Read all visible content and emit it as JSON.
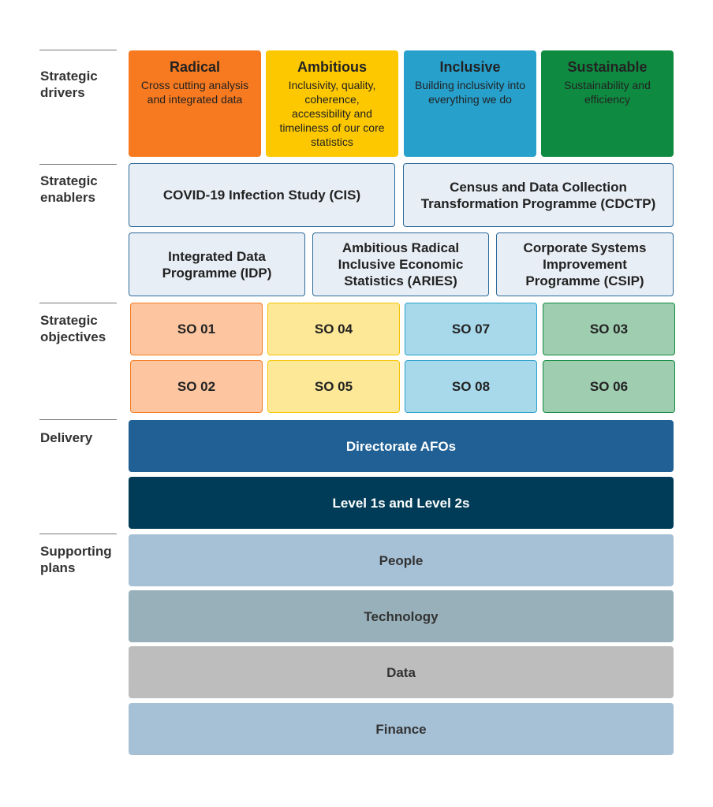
{
  "sections": [
    "Strategic drivers",
    "Strategic enablers",
    "Strategic objectives",
    "Delivery",
    "Supporting plans"
  ],
  "drivers": [
    {
      "title": "Radical",
      "text": "Cross cutting analysis and integrated data"
    },
    {
      "title": "Ambitious",
      "text": "Inclusivity, quality, coherence, accessibility and timeliness of our core statistics"
    },
    {
      "title": "Inclusive",
      "text": "Building inclusivity into everything we do"
    },
    {
      "title": "Sustainable",
      "text": "Sustainability and efficiency"
    }
  ],
  "enablers": [
    "COVID-19 Infection Study (CIS)",
    "Census and Data Collection Transformation Programme (CDCTP)",
    "Integrated Data Programme (IDP)",
    "Ambitious Radical Inclusive Economic Statistics (ARIES)",
    "Corporate Systems Improvement Programme (CSIP)"
  ],
  "objectives": [
    [
      "SO 01",
      "SO 04",
      "SO 07",
      "SO 03"
    ],
    [
      "SO 02",
      "SO 05",
      "SO 08",
      "SO 06"
    ]
  ],
  "delivery": [
    "Directorate AFOs",
    "Level 1s and Level 2s"
  ],
  "supporting_plans": [
    "People",
    "Technology",
    "Data",
    "Finance"
  ]
}
